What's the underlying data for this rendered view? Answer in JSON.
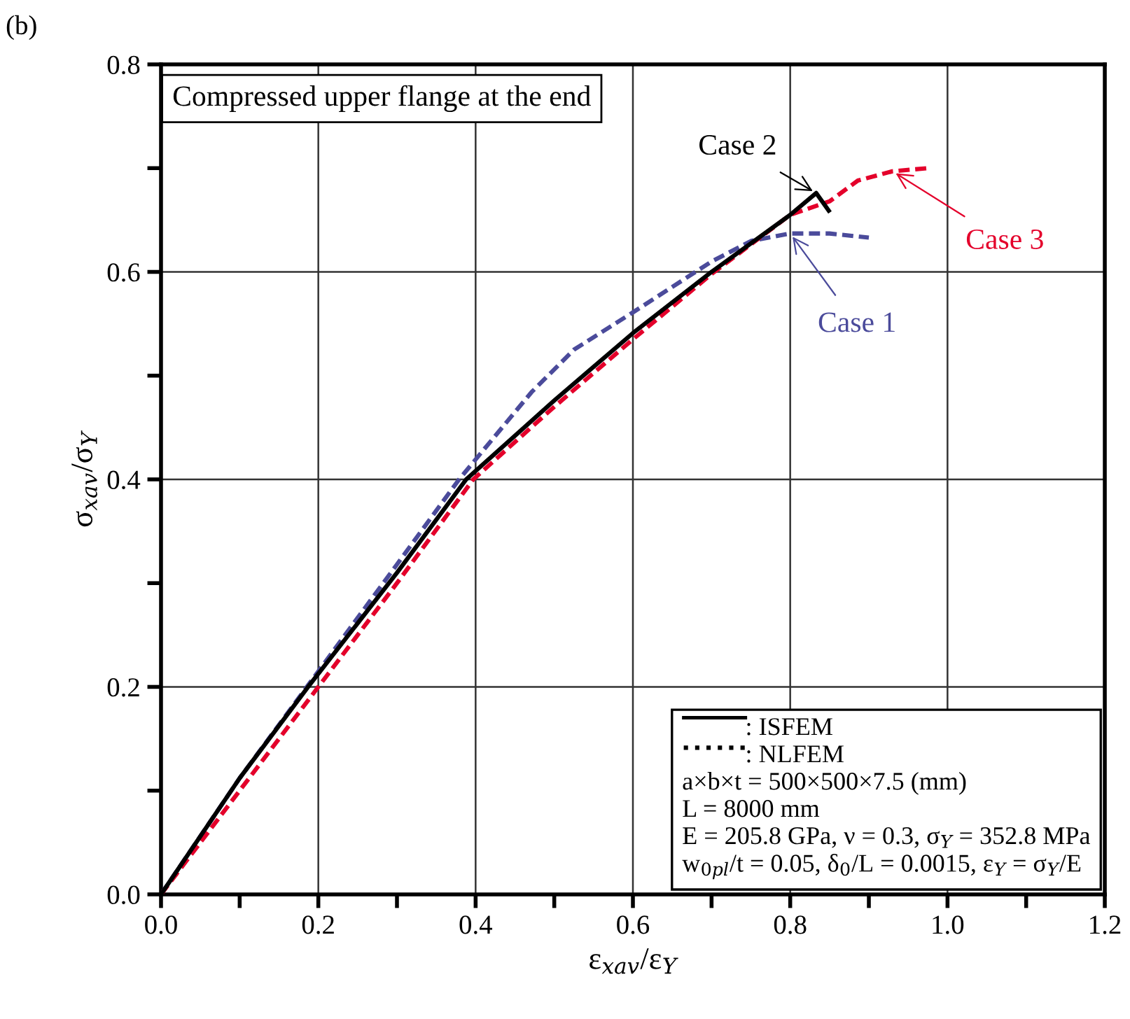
{
  "chart_data": {
    "type": "line",
    "xlabel": "ε$_{xav}$/ε$_{Y}$",
    "ylabel": "σ$_{xav}$/σ$_{Y}$",
    "xlim": [
      0,
      1.2
    ],
    "ylim": [
      0,
      0.8
    ],
    "xticks": [
      {
        "value": 0,
        "label": "0.0"
      },
      0.2,
      0.4,
      0.6,
      0.8,
      {
        "value": 1,
        "label": "1.0"
      },
      1.2
    ],
    "yticks": [
      {
        "value": 0,
        "label": "0.0"
      },
      0.2,
      0.4,
      0.6,
      0.8
    ],
    "grid": true,
    "series": [
      {
        "name": "Case 1",
        "color": "#4b4b9b",
        "line_style": "dashed",
        "x": [
          0,
          0.1,
          0.2,
          0.3,
          0.379,
          0.471,
          0.525,
          0.6,
          0.7,
          0.751,
          0.8,
          0.85,
          0.9
        ],
        "values": [
          0,
          0.112,
          0.215,
          0.318,
          0.4,
          0.484,
          0.525,
          0.561,
          0.61,
          0.63,
          0.637,
          0.637,
          0.633
        ]
      },
      {
        "name": "Case 2",
        "color": "#000000",
        "line_style": "solid",
        "x": [
          0,
          0.1,
          0.187,
          0.3,
          0.388,
          0.5,
          0.6,
          0.7,
          0.8,
          0.833,
          0.849
        ],
        "values": [
          0,
          0.112,
          0.2,
          0.31,
          0.4,
          0.476,
          0.541,
          0.6,
          0.655,
          0.676,
          0.659
        ]
      },
      {
        "name": "Case 3",
        "color": "#e4002b",
        "line_style": "dashed",
        "x": [
          0,
          0.1,
          0.2,
          0.3,
          0.397,
          0.5,
          0.6,
          0.7,
          0.8,
          0.85,
          0.886,
          0.93,
          0.975
        ],
        "values": [
          0,
          0.1,
          0.2,
          0.3,
          0.4,
          0.47,
          0.535,
          0.598,
          0.655,
          0.668,
          0.688,
          0.697,
          0.7
        ]
      }
    ],
    "annotations": [
      "(b)",
      "Compressed upper flange at the end",
      ": ISFEM",
      ": NLFEM",
      "a×b×t = 500×500×7.5 (mm)",
      "L = 8000 mm",
      "E = 205.8 GPa, ν = 0.3, σ$_{Y}$ = 352.8 MPa",
      "w$_{0pl}$/t = 0.05, δ$_{0}$/L = 0.0015, ε$_{Y}$ = σ$_{Y}$/E"
    ]
  }
}
